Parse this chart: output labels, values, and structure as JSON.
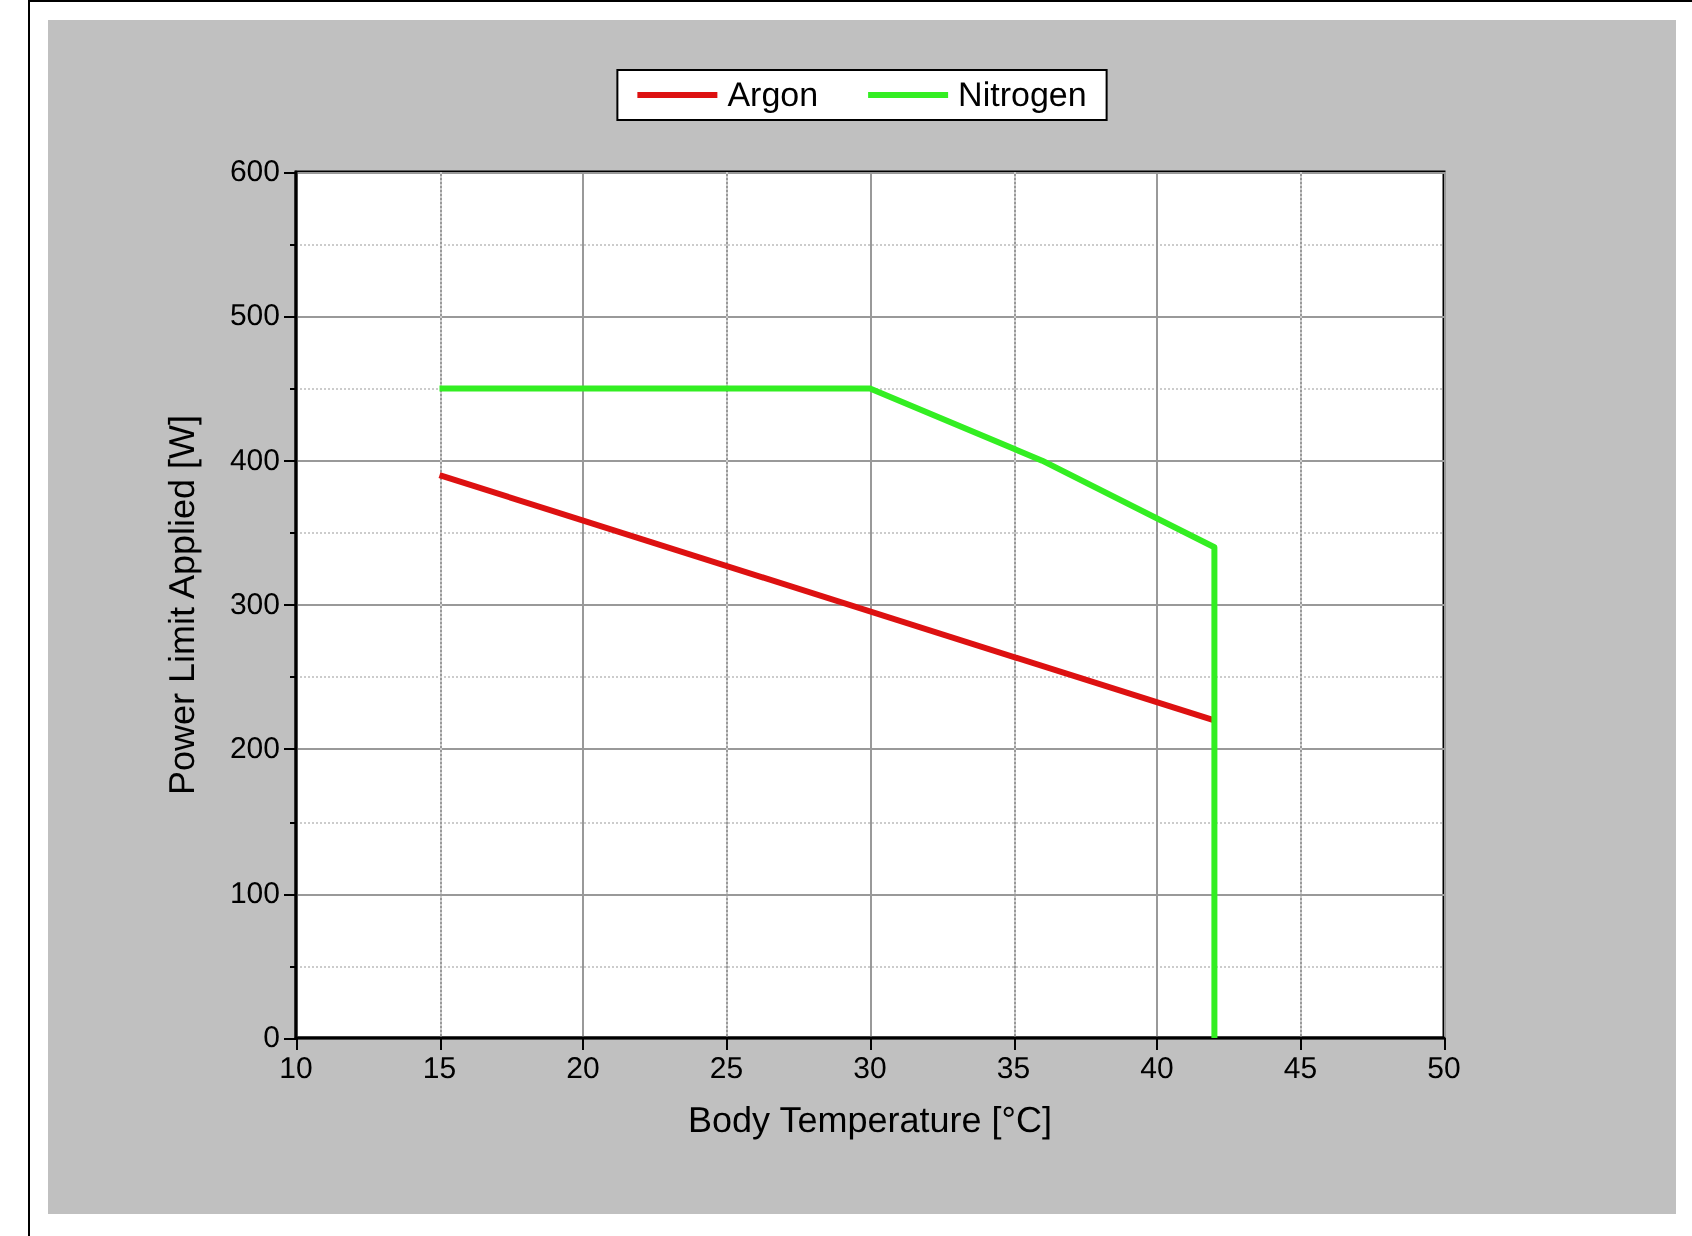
{
  "chart_data": {
    "type": "line",
    "xlabel": "Body Temperature [°C]",
    "ylabel": "Power Limit Applied [W]",
    "xlim": [
      10,
      50
    ],
    "xticks": [
      10,
      15,
      20,
      25,
      30,
      35,
      40,
      45,
      50
    ],
    "ylim": [
      0,
      600
    ],
    "yticks": [
      0,
      100,
      200,
      300,
      400,
      500,
      600
    ],
    "grid": true,
    "legend": "top",
    "marker": "none",
    "line_style": "solid",
    "series": [
      {
        "name": "Argon",
        "color": "#dd1111",
        "x": [
          15,
          42
        ],
        "values": [
          390,
          220
        ]
      },
      {
        "name": "Nitrogen",
        "color": "#33ee22",
        "x": [
          15,
          30,
          36,
          42,
          42
        ],
        "values": [
          450,
          450,
          400,
          340,
          0
        ]
      }
    ]
  }
}
